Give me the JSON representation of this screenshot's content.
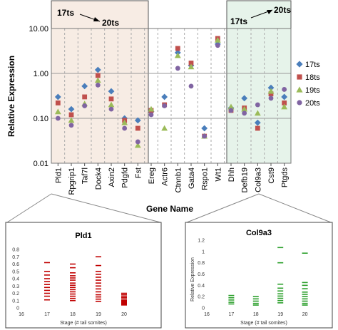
{
  "colors": {
    "17ts": "#4a7ebb",
    "18ts": "#c0504d",
    "19ts": "#9bbb59",
    "20ts": "#8064a2",
    "left_band": "#f7ece4",
    "right_band": "#e6f3ea",
    "inset_left": "#c00000",
    "inset_right": "#2ca02c"
  },
  "annotations": {
    "left_from": "17ts",
    "left_to": "20ts",
    "right_from": "17ts",
    "right_to": "20ts"
  },
  "chart_data": [
    {
      "type": "scatter",
      "ylabel": "Relative Expression",
      "xlabel": "Gene Name",
      "yscale": "log",
      "ylim": [
        0.01,
        10
      ],
      "yticks": [
        "0.01",
        "0.10",
        "1.00",
        "10.00"
      ],
      "categories": [
        "Pld1",
        "Rpgrip1",
        "Taf7l",
        "Dock4",
        "Axin2",
        "Pdgfd",
        "Fst",
        "Ereg",
        "Actr6",
        "Ctnnb1",
        "Gata4",
        "Rspo1",
        "Wt1",
        "Dhh",
        "Defb19",
        "Col9a3",
        "Cst9",
        "Ptgds"
      ],
      "groups": [
        {
          "label": "17ts → 20ts",
          "from": 0,
          "to": 6
        },
        {
          "label": "17ts → 20ts",
          "from": 13,
          "to": 17
        }
      ],
      "legend": {
        "position": "right",
        "entries": [
          "17ts",
          "18ts",
          "19ts",
          "20ts"
        ]
      },
      "series": [
        {
          "name": "17ts",
          "marker": "diamond",
          "values": [
            0.3,
            0.16,
            0.52,
            1.2,
            0.4,
            0.1,
            0.09,
            0.14,
            0.3,
            2.9,
            1.5,
            0.06,
            4.5,
            0.17,
            0.28,
            0.08,
            0.48,
            0.3
          ]
        },
        {
          "name": "18ts",
          "marker": "square",
          "values": [
            0.22,
            0.12,
            0.3,
            0.9,
            0.27,
            0.09,
            0.06,
            0.15,
            0.2,
            3.6,
            1.7,
            0.04,
            6.0,
            0.15,
            0.17,
            0.06,
            0.35,
            0.22
          ]
        },
        {
          "name": "19ts",
          "marker": "triangle",
          "values": [
            0.14,
            0.09,
            0.21,
            0.7,
            0.2,
            0.08,
            0.025,
            0.16,
            0.06,
            2.5,
            1.4,
            0.04,
            5.5,
            0.18,
            0.16,
            0.13,
            0.4,
            0.18
          ]
        },
        {
          "name": "20ts",
          "marker": "circle",
          "values": [
            0.1,
            0.07,
            0.19,
            0.55,
            0.16,
            0.06,
            0.03,
            0.12,
            0.19,
            1.3,
            0.52,
            0.04,
            4.2,
            0.15,
            0.13,
            0.2,
            0.28,
            0.44
          ]
        }
      ]
    },
    {
      "type": "scatter",
      "title": "Pld1",
      "gene_link": "Pld1",
      "xlabel": "Stage (# tail somites)",
      "ylabel": "",
      "xlim": [
        16,
        21
      ],
      "xticks": [
        "16",
        "17",
        "18",
        "19",
        "20"
      ],
      "ylim": [
        0,
        0.8
      ],
      "yticks": [
        "0",
        "0.1",
        "0.2",
        "0.3",
        "0.4",
        "0.5",
        "0.6",
        "0.7",
        "0.8"
      ],
      "points": {
        "17": [
          0.62,
          0.5,
          0.45,
          0.4,
          0.36,
          0.32,
          0.28,
          0.24,
          0.2,
          0.16,
          0.11
        ],
        "18": [
          0.6,
          0.55,
          0.48,
          0.44,
          0.41,
          0.38,
          0.34,
          0.31,
          0.28,
          0.25,
          0.22,
          0.19,
          0.16,
          0.13,
          0.1
        ],
        "19": [
          0.7,
          0.58,
          0.5,
          0.46,
          0.42,
          0.38,
          0.34,
          0.3,
          0.26,
          0.22,
          0.18,
          0.15,
          0.12,
          0.09
        ],
        "20": [
          0.2,
          0.18,
          0.16,
          0.14,
          0.12,
          0.1,
          0.09,
          0.08,
          0.07,
          0.06,
          0.05,
          0.04
        ]
      }
    },
    {
      "type": "scatter",
      "title": "Col9a3",
      "gene_link": "Col9a3",
      "xlabel": "Stage (# tail somites)",
      "ylabel": "Relative Expression",
      "xlim": [
        16,
        21
      ],
      "xticks": [
        "16",
        "17",
        "18",
        "19",
        "20"
      ],
      "ylim": [
        0,
        1.2
      ],
      "yticks": [
        "0",
        "0.2",
        "0.4",
        "0.6",
        "0.8",
        "1",
        "1.2"
      ],
      "points": {
        "17": [
          0.22,
          0.18,
          0.14,
          0.1,
          0.07
        ],
        "18": [
          0.2,
          0.16,
          0.12,
          0.08,
          0.05
        ],
        "19": [
          1.07,
          0.8,
          0.42,
          0.35,
          0.3,
          0.25,
          0.21,
          0.17,
          0.13,
          0.09
        ],
        "20": [
          0.97,
          0.45,
          0.4,
          0.34,
          0.28,
          0.24,
          0.2,
          0.16,
          0.12,
          0.08,
          0.05
        ]
      }
    }
  ]
}
